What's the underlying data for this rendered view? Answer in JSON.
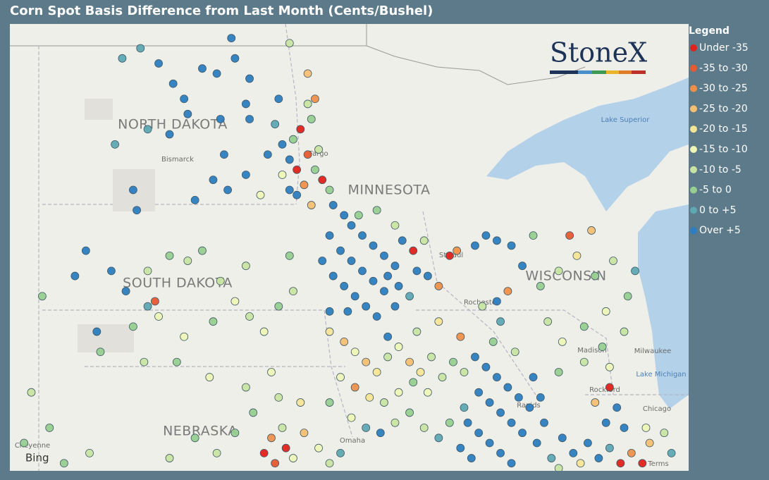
{
  "title": "Corn Spot Basis Difference from Last Month (Cents/Bushel)",
  "logo": "StoneX",
  "legend": {
    "title": "Legend",
    "items": [
      {
        "label": "Under -35",
        "color": "#e0221c"
      },
      {
        "label": "-35 to -30",
        "color": "#e65a31"
      },
      {
        "label": "-30 to -25",
        "color": "#f08f4a"
      },
      {
        "label": "-25 to -20",
        "color": "#f6be72"
      },
      {
        "label": "-20 to -15",
        "color": "#f7e596"
      },
      {
        "label": "-15 to -10",
        "color": "#eef5b6"
      },
      {
        "label": "-10 to -5",
        "color": "#c8e4a2"
      },
      {
        "label": "-5 to 0",
        "color": "#96cf8f"
      },
      {
        "label": "0 to +5",
        "color": "#5ea8b4"
      },
      {
        "label": "Over +5",
        "color": "#2c7dc1"
      }
    ]
  },
  "map": {
    "labels": [
      "NORTH DAKOTA",
      "MINNESOTA",
      "SOUTH DAKOTA",
      "WISCONSIN",
      "NEBRASKA",
      "Bismarck",
      "Fargo",
      "St Paul",
      "Rochester",
      "Madison",
      "Milwaukee",
      "Rockford",
      "Chicago",
      "Rapids",
      "Omaha",
      "Cheyenne",
      "Lake Superior",
      "Lake Michigan",
      "Bing",
      "Terms"
    ],
    "points": [
      [
        -102.3,
        48.8,
        8
      ],
      [
        -101.8,
        49.0,
        8
      ],
      [
        -101.3,
        48.7,
        9
      ],
      [
        -100.9,
        48.3,
        9
      ],
      [
        -100.6,
        48.0,
        9
      ],
      [
        -100.1,
        48.6,
        9
      ],
      [
        -99.7,
        48.5,
        9
      ],
      [
        -99.3,
        49.2,
        9
      ],
      [
        -99.2,
        48.8,
        9
      ],
      [
        -98.8,
        48.4,
        9
      ],
      [
        -98.9,
        47.9,
        9
      ],
      [
        -99.6,
        47.6,
        9
      ],
      [
        -101.0,
        47.3,
        9
      ],
      [
        -101.6,
        47.4,
        8
      ],
      [
        -102.5,
        47.1,
        8
      ],
      [
        -99.8,
        46.4,
        9
      ],
      [
        -100.3,
        46.0,
        9
      ],
      [
        -99.4,
        46.2,
        9
      ],
      [
        -98.9,
        46.5,
        9
      ],
      [
        -98.5,
        46.1,
        5
      ],
      [
        -98.3,
        46.9,
        9
      ],
      [
        -97.9,
        47.1,
        9
      ],
      [
        -98.8,
        47.6,
        9
      ],
      [
        -98.0,
        48.0,
        9
      ],
      [
        -98.1,
        47.5,
        8
      ],
      [
        -102.0,
        46.2,
        9
      ],
      [
        -101.9,
        45.8,
        9
      ],
      [
        -100.5,
        47.7,
        9
      ],
      [
        -99.5,
        46.9,
        9
      ],
      [
        -97.7,
        46.2,
        9
      ],
      [
        -97.0,
        48.0,
        2
      ],
      [
        -97.2,
        47.9,
        6
      ],
      [
        -97.1,
        47.6,
        7
      ],
      [
        -97.4,
        47.4,
        0
      ],
      [
        -97.6,
        47.2,
        7
      ],
      [
        -97.2,
        46.9,
        1
      ],
      [
        -97.5,
        46.6,
        0
      ],
      [
        -97.7,
        46.8,
        9
      ],
      [
        -97.0,
        46.6,
        7
      ],
      [
        -96.8,
        46.4,
        0
      ],
      [
        -97.3,
        46.3,
        2
      ],
      [
        -96.9,
        47.0,
        6
      ],
      [
        -97.9,
        46.5,
        5
      ],
      [
        -97.5,
        46.1,
        9
      ],
      [
        -97.1,
        45.9,
        3
      ],
      [
        -96.6,
        46.2,
        7
      ],
      [
        -97.7,
        49.1,
        6
      ],
      [
        -97.2,
        48.5,
        3
      ],
      [
        -96.5,
        45.9,
        9
      ],
      [
        -96.2,
        45.7,
        9
      ],
      [
        -96.0,
        45.5,
        9
      ],
      [
        -95.7,
        45.3,
        9
      ],
      [
        -95.4,
        45.1,
        9
      ],
      [
        -95.1,
        44.9,
        9
      ],
      [
        -94.8,
        44.7,
        9
      ],
      [
        -96.6,
        45.3,
        9
      ],
      [
        -96.3,
        45.0,
        9
      ],
      [
        -96.0,
        44.8,
        9
      ],
      [
        -95.7,
        44.6,
        9
      ],
      [
        -95.4,
        44.4,
        9
      ],
      [
        -95.1,
        44.2,
        9
      ],
      [
        -96.8,
        44.8,
        9
      ],
      [
        -96.5,
        44.5,
        9
      ],
      [
        -96.2,
        44.3,
        9
      ],
      [
        -95.9,
        44.1,
        9
      ],
      [
        -95.0,
        44.5,
        9
      ],
      [
        -94.7,
        44.3,
        9
      ],
      [
        -94.4,
        44.1,
        8
      ],
      [
        -95.8,
        45.7,
        7
      ],
      [
        -95.3,
        45.8,
        7
      ],
      [
        -94.8,
        45.5,
        6
      ],
      [
        -94.3,
        45.0,
        0
      ],
      [
        -94.0,
        45.2,
        6
      ],
      [
        -94.6,
        45.2,
        9
      ],
      [
        -94.2,
        44.6,
        9
      ],
      [
        -93.9,
        44.5,
        9
      ],
      [
        -93.6,
        44.3,
        2
      ],
      [
        -93.3,
        44.9,
        0
      ],
      [
        -93.1,
        45.0,
        2
      ],
      [
        -92.6,
        45.1,
        9
      ],
      [
        -92.3,
        45.3,
        9
      ],
      [
        -92.0,
        45.2,
        9
      ],
      [
        -91.6,
        45.1,
        9
      ],
      [
        -96.1,
        43.8,
        9
      ],
      [
        -95.6,
        43.9,
        9
      ],
      [
        -95.3,
        43.7,
        9
      ],
      [
        -94.8,
        43.9,
        9
      ],
      [
        -104.5,
        44.1,
        7
      ],
      [
        -103.6,
        44.5,
        9
      ],
      [
        -103.3,
        45.0,
        9
      ],
      [
        -102.6,
        44.6,
        9
      ],
      [
        -102.2,
        44.2,
        9
      ],
      [
        -101.6,
        44.6,
        6
      ],
      [
        -101.0,
        44.9,
        7
      ],
      [
        -100.5,
        44.8,
        6
      ],
      [
        -100.1,
        45.0,
        7
      ],
      [
        -99.6,
        44.4,
        6
      ],
      [
        -99.2,
        44.0,
        5
      ],
      [
        -98.8,
        43.7,
        6
      ],
      [
        -98.4,
        43.4,
        5
      ],
      [
        -98.0,
        43.9,
        7
      ],
      [
        -97.6,
        44.2,
        6
      ],
      [
        -99.8,
        43.6,
        7
      ],
      [
        -100.6,
        43.3,
        5
      ],
      [
        -101.3,
        43.7,
        5
      ],
      [
        -102.0,
        43.5,
        7
      ],
      [
        -103.0,
        43.4,
        9
      ],
      [
        -102.9,
        43.0,
        7
      ],
      [
        -101.7,
        42.8,
        6
      ],
      [
        -100.8,
        42.8,
        7
      ],
      [
        -99.9,
        42.5,
        5
      ],
      [
        -98.9,
        42.3,
        6
      ],
      [
        -98.2,
        42.6,
        5
      ],
      [
        -101.4,
        44.0,
        1
      ],
      [
        -101.6,
        43.9,
        8
      ],
      [
        -97.7,
        44.9,
        7
      ],
      [
        -98.9,
        44.7,
        6
      ],
      [
        -104.8,
        42.2,
        6
      ],
      [
        -105.0,
        41.2,
        7
      ],
      [
        -104.3,
        41.5,
        7
      ],
      [
        -103.2,
        41.0,
        6
      ],
      [
        -103.9,
        40.8,
        7
      ],
      [
        -96.6,
        43.4,
        4
      ],
      [
        -96.2,
        43.2,
        3
      ],
      [
        -95.9,
        43.0,
        5
      ],
      [
        -95.6,
        42.8,
        3
      ],
      [
        -95.3,
        42.6,
        4
      ],
      [
        -95.0,
        42.9,
        6
      ],
      [
        -94.7,
        43.1,
        5
      ],
      [
        -94.4,
        42.8,
        3
      ],
      [
        -94.1,
        42.6,
        4
      ],
      [
        -93.8,
        42.9,
        6
      ],
      [
        -96.3,
        42.5,
        5
      ],
      [
        -95.9,
        42.3,
        2
      ],
      [
        -95.5,
        42.1,
        4
      ],
      [
        -95.1,
        42.0,
        6
      ],
      [
        -94.7,
        42.2,
        5
      ],
      [
        -94.3,
        42.4,
        7
      ],
      [
        -93.9,
        42.2,
        5
      ],
      [
        -93.5,
        42.5,
        6
      ],
      [
        -93.2,
        42.8,
        7
      ],
      [
        -92.9,
        42.6,
        6
      ],
      [
        -96.6,
        42.0,
        7
      ],
      [
        -96.0,
        41.7,
        5
      ],
      [
        -95.6,
        41.5,
        8
      ],
      [
        -95.2,
        41.4,
        9
      ],
      [
        -94.8,
        41.6,
        6
      ],
      [
        -94.4,
        41.8,
        7
      ],
      [
        -94.0,
        41.5,
        6
      ],
      [
        -93.6,
        41.3,
        8
      ],
      [
        -93.3,
        41.6,
        7
      ],
      [
        -92.9,
        41.9,
        8
      ],
      [
        -93.0,
        43.3,
        2
      ],
      [
        -93.6,
        43.6,
        4
      ],
      [
        -94.2,
        43.4,
        6
      ],
      [
        -96.6,
        43.8,
        9
      ],
      [
        -95.0,
        43.3,
        9
      ],
      [
        -92.6,
        42.9,
        9
      ],
      [
        -92.3,
        42.7,
        9
      ],
      [
        -92.0,
        42.5,
        9
      ],
      [
        -91.7,
        42.3,
        9
      ],
      [
        -91.4,
        42.1,
        9
      ],
      [
        -91.1,
        41.9,
        9
      ],
      [
        -92.5,
        42.2,
        9
      ],
      [
        -92.2,
        42.0,
        9
      ],
      [
        -91.9,
        41.8,
        9
      ],
      [
        -91.6,
        41.6,
        9
      ],
      [
        -91.3,
        41.4,
        9
      ],
      [
        -92.8,
        41.6,
        9
      ],
      [
        -92.5,
        41.4,
        9
      ],
      [
        -92.2,
        41.2,
        9
      ],
      [
        -91.9,
        41.0,
        9
      ],
      [
        -91.6,
        40.8,
        9
      ],
      [
        -93.0,
        41.1,
        9
      ],
      [
        -92.7,
        40.9,
        9
      ],
      [
        -91.0,
        42.5,
        9
      ],
      [
        -90.8,
        42.1,
        9
      ],
      [
        -90.7,
        41.6,
        9
      ],
      [
        -90.9,
        41.2,
        9
      ],
      [
        -90.5,
        40.9,
        8
      ],
      [
        -92.1,
        43.2,
        7
      ],
      [
        -91.5,
        43.0,
        6
      ],
      [
        -91.9,
        43.6,
        8
      ],
      [
        -92.4,
        43.9,
        6
      ],
      [
        -92.0,
        44.0,
        9
      ],
      [
        -91.7,
        44.2,
        2
      ],
      [
        -90.8,
        44.3,
        7
      ],
      [
        -90.3,
        44.6,
        6
      ],
      [
        -89.8,
        44.9,
        4
      ],
      [
        -89.3,
        44.5,
        7
      ],
      [
        -88.8,
        44.8,
        6
      ],
      [
        -88.4,
        44.1,
        7
      ],
      [
        -89.0,
        43.8,
        5
      ],
      [
        -89.6,
        43.5,
        7
      ],
      [
        -90.2,
        43.2,
        5
      ],
      [
        -90.6,
        43.6,
        6
      ],
      [
        -90.0,
        45.3,
        1
      ],
      [
        -89.4,
        45.4,
        3
      ],
      [
        -88.2,
        44.6,
        8
      ],
      [
        -88.5,
        43.4,
        6
      ],
      [
        -89.1,
        43.1,
        7
      ],
      [
        -88.9,
        42.7,
        5
      ],
      [
        -89.6,
        42.8,
        6
      ],
      [
        -90.3,
        42.6,
        7
      ],
      [
        -91.0,
        45.3,
        7
      ],
      [
        -91.3,
        44.7,
        9
      ],
      [
        -90.2,
        41.3,
        9
      ],
      [
        -89.9,
        41.0,
        9
      ],
      [
        -89.5,
        41.2,
        9
      ],
      [
        -89.2,
        40.9,
        9
      ],
      [
        -88.9,
        41.1,
        8
      ],
      [
        -88.6,
        40.8,
        0
      ],
      [
        -88.3,
        41.0,
        2
      ],
      [
        -88.0,
        40.8,
        0
      ],
      [
        -87.8,
        41.2,
        3
      ],
      [
        -89.0,
        41.6,
        9
      ],
      [
        -88.7,
        41.9,
        9
      ],
      [
        -89.3,
        42.0,
        3
      ],
      [
        -88.9,
        42.3,
        0
      ],
      [
        -88.5,
        41.5,
        9
      ],
      [
        -87.9,
        41.5,
        5
      ],
      [
        -87.4,
        41.4,
        6
      ],
      [
        -87.2,
        41.0,
        8
      ],
      [
        -89.7,
        40.8,
        4
      ],
      [
        -90.3,
        40.7,
        6
      ],
      [
        -98.4,
        41.0,
        0
      ],
      [
        -98.1,
        40.8,
        1
      ],
      [
        -97.8,
        41.1,
        0
      ],
      [
        -97.6,
        40.9,
        5
      ],
      [
        -98.2,
        41.3,
        2
      ],
      [
        -97.9,
        41.5,
        6
      ],
      [
        -97.3,
        41.4,
        3
      ],
      [
        -96.9,
        41.1,
        5
      ],
      [
        -96.6,
        40.8,
        6
      ],
      [
        -96.3,
        41.0,
        8
      ],
      [
        -99.2,
        41.4,
        7
      ],
      [
        -99.7,
        41.0,
        6
      ],
      [
        -100.3,
        41.3,
        7
      ],
      [
        -101.0,
        40.9,
        6
      ],
      [
        -98.7,
        41.8,
        7
      ],
      [
        -97.4,
        42.0,
        4
      ],
      [
        -98.0,
        42.1,
        6
      ]
    ]
  }
}
